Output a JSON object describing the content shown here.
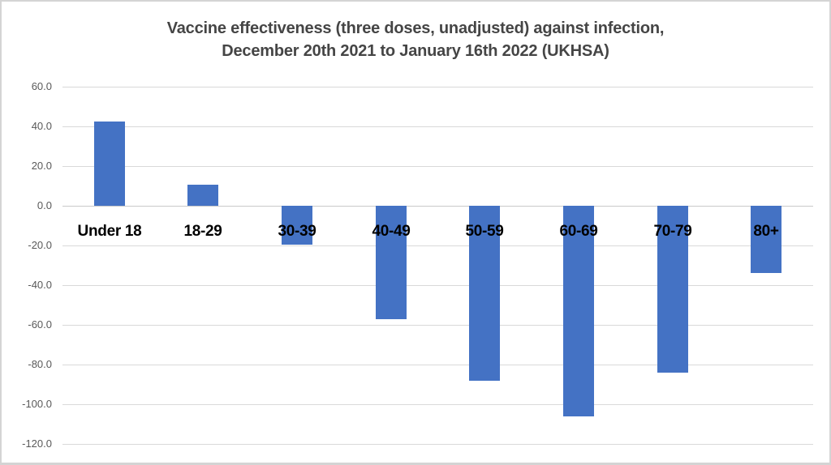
{
  "chart_data": {
    "type": "bar",
    "title": "Vaccine effectiveness (three doses, unadjusted) against infection, December 20th 2021 to January 16th 2022 (UKHSA)",
    "title_line1": "Vaccine effectiveness (three doses, unadjusted) against infection,",
    "title_line2": "December 20th 2021 to January 16th 2022 (UKHSA)",
    "categories": [
      "Under 18",
      "18-29",
      "30-39",
      "40-49",
      "50-59",
      "60-69",
      "70-79",
      "80+"
    ],
    "values": [
      42.5,
      10.5,
      -19.5,
      -57,
      -88,
      -106,
      -84,
      -34
    ],
    "xlabel": "",
    "ylabel": "",
    "ylim": [
      -120,
      60
    ],
    "ytick_labels": [
      "60.0",
      "40.0",
      "20.0",
      "0.0",
      "-20.0",
      "-40.0",
      "-60.0",
      "-80.0",
      "-100.0",
      "-120.0"
    ],
    "grid": true,
    "legend": false,
    "colors": {
      "bar": "#4472C4",
      "gridline": "#D9D9D9",
      "zero_line": "#C9C9C9",
      "axis_labels": "#595959",
      "category_labels": "#000000",
      "title": "#454545",
      "background": "#FFFFFF",
      "frame_border": "#D4D4D4"
    }
  }
}
